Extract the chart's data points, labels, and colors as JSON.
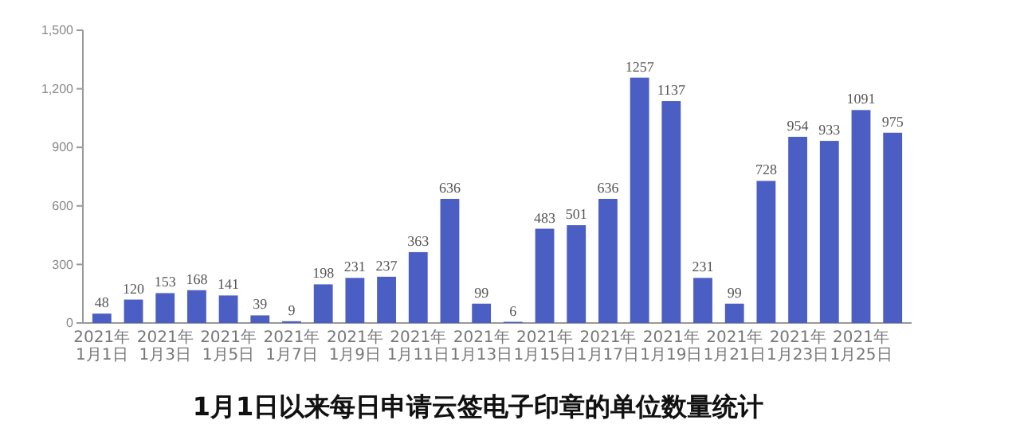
{
  "chart_data": {
    "type": "bar",
    "title": "1月1日以来每日申请云签电子印章的单位数量统计",
    "categories": [
      "2021年1月1日",
      null,
      "2021年1月3日",
      null,
      "2021年1月5日",
      null,
      "2021年1月7日",
      null,
      "2021年1月9日",
      null,
      "2021年1月11日",
      null,
      "2021年1月13日",
      null,
      "2021年1月15日",
      null,
      "2021年1月17日",
      null,
      "2021年1月19日",
      null,
      "2021年1月21日",
      null,
      "2021年1月23日",
      null,
      "2021年1月25日",
      null
    ],
    "values": [
      48,
      120,
      153,
      168,
      141,
      39,
      9,
      198,
      231,
      237,
      363,
      636,
      99,
      6,
      483,
      501,
      636,
      1257,
      1137,
      231,
      99,
      728,
      954,
      933,
      1091,
      975
    ],
    "color": "#4a5ec4",
    "data_labels": true,
    "ylim": [
      0,
      1500
    ],
    "yticks": [
      0,
      {
        "value": 300,
        "label": "300"
      },
      {
        "value": 600,
        "label": "600"
      },
      {
        "value": 900,
        "label": "900"
      },
      {
        "value": 1200,
        "label": "1,200"
      },
      {
        "value": 1500,
        "label": "1,500"
      }
    ]
  }
}
